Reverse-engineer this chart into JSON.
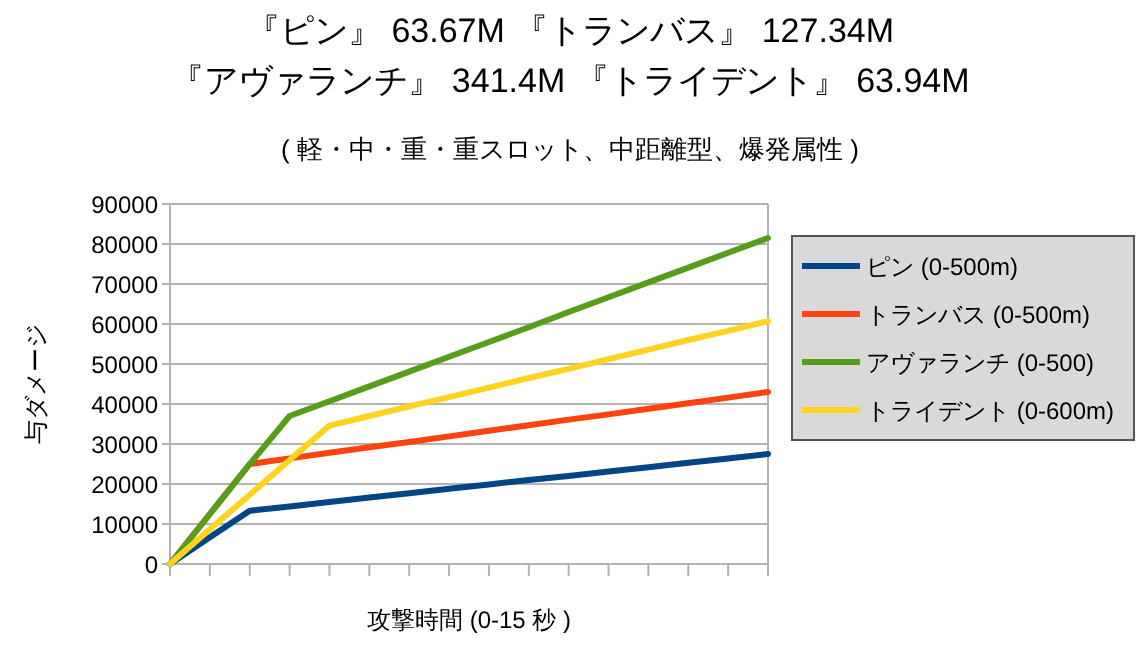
{
  "chart_data": {
    "type": "line",
    "title": "『ピン』 63.67M 『トランバス』 127.34M\n『アヴァランチ』 341.4M 『トライデント』 63.94M",
    "subtitle": "( 軽・中・重・重スロット、中距離型、爆発属性 )",
    "xlabel": "攻撃時間 (0-15 秒 )",
    "ylabel": "与ダメージ",
    "categories": [
      null,
      null,
      null,
      null,
      null,
      null,
      null,
      null,
      null,
      null,
      null,
      null,
      null,
      null,
      null,
      null
    ],
    "series": [
      {
        "name": "ピン (0-500m)",
        "color": "#004586",
        "values": [
          0,
          6700,
          13300,
          14400,
          15500,
          16600,
          17700,
          18800,
          19900,
          21000,
          22000,
          23100,
          24200,
          25300,
          26400,
          27500
        ]
      },
      {
        "name": "トランバス (0-500m)",
        "color": "#ff420e",
        "values": [
          0,
          12500,
          25000,
          26400,
          27800,
          29200,
          30500,
          31900,
          33300,
          34700,
          36100,
          37400,
          38800,
          40200,
          41600,
          43000
        ]
      },
      {
        "name": "アヴァランチ (0-500)",
        "color": "#579d1c",
        "values": [
          0,
          12500,
          25000,
          37000,
          40700,
          44400,
          48100,
          51800,
          55500,
          59200,
          63000,
          66700,
          70400,
          74100,
          77800,
          81500
        ]
      },
      {
        "name": "トライデント (0-600m)",
        "color": "#ffd320",
        "values": [
          0,
          8700,
          17300,
          26000,
          34600,
          37000,
          39400,
          41700,
          44100,
          46500,
          48800,
          51200,
          53600,
          56000,
          58300,
          60700
        ]
      }
    ],
    "ylim": [
      0,
      90000
    ],
    "yticks": [
      0,
      10000,
      20000,
      30000,
      40000,
      50000,
      60000,
      70000,
      80000,
      90000
    ],
    "grid": "y",
    "legend": "right",
    "marker": "none",
    "line_style": "solid"
  }
}
